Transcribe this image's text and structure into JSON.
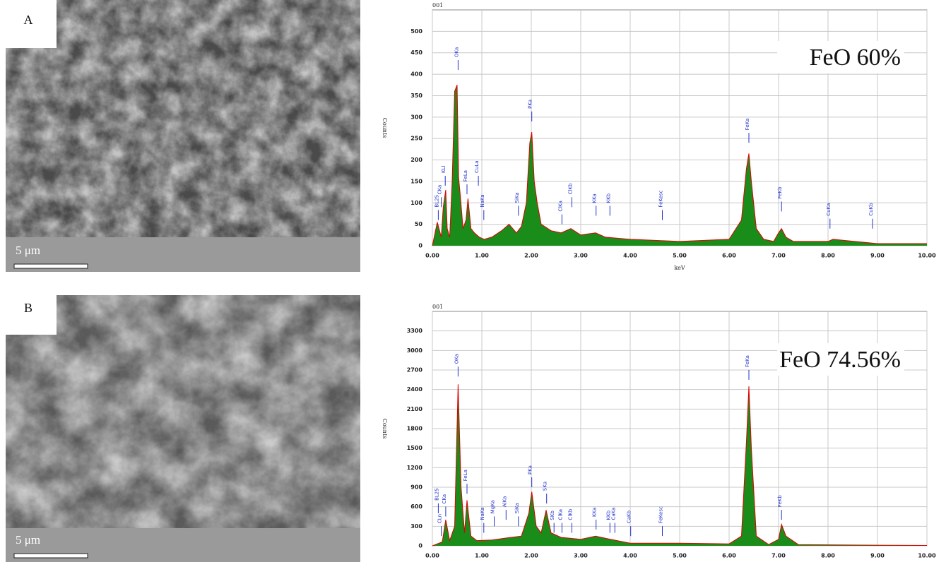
{
  "panels": [
    {
      "label": "A",
      "scale_bar": "5 μm"
    },
    {
      "label": "B",
      "scale_bar": "5 μm"
    }
  ],
  "chart_data": [
    {
      "type": "line",
      "title": "001",
      "y_label": "Counts",
      "x_label": "keV",
      "annotation": "FeO 60%",
      "xlim": [
        0,
        10
      ],
      "ylim": [
        0,
        550
      ],
      "grid": true,
      "xticks": [
        {
          "value": 0,
          "label": "0.00"
        },
        {
          "value": 1,
          "label": "1.00"
        },
        {
          "value": 2,
          "label": "2.00"
        },
        {
          "value": 3,
          "label": "3.00"
        },
        {
          "value": 4,
          "label": "4.00"
        },
        {
          "value": 5,
          "label": "5.00"
        },
        {
          "value": 6,
          "label": "6.00"
        },
        {
          "value": 7,
          "label": "7.00"
        },
        {
          "value": 8,
          "label": "8.00"
        },
        {
          "value": 9,
          "label": "9.00"
        },
        {
          "value": 10,
          "label": "10.00"
        }
      ],
      "yticks": [
        0,
        50,
        100,
        150,
        200,
        250,
        300,
        350,
        400,
        450,
        500
      ],
      "x": [
        0.0,
        0.1,
        0.18,
        0.22,
        0.27,
        0.3,
        0.35,
        0.4,
        0.45,
        0.5,
        0.53,
        0.57,
        0.62,
        0.68,
        0.72,
        0.78,
        0.85,
        0.95,
        1.05,
        1.2,
        1.4,
        1.55,
        1.7,
        1.8,
        1.9,
        1.97,
        2.01,
        2.06,
        2.12,
        2.2,
        2.4,
        2.6,
        2.8,
        3.0,
        3.3,
        3.5,
        4.0,
        5.0,
        6.0,
        6.25,
        6.35,
        6.4,
        6.45,
        6.55,
        6.7,
        6.9,
        7.0,
        7.06,
        7.15,
        7.3,
        8.0,
        8.1,
        9.0,
        10.0
      ],
      "series": [
        {
          "color": "#e00000",
          "fill": "#1a8c1a",
          "values": [
            0,
            55,
            20,
            90,
            130,
            40,
            20,
            150,
            360,
            375,
            160,
            110,
            40,
            60,
            110,
            40,
            30,
            20,
            15,
            20,
            35,
            50,
            30,
            45,
            100,
            240,
            265,
            150,
            100,
            50,
            35,
            30,
            40,
            25,
            30,
            20,
            15,
            10,
            15,
            60,
            180,
            215,
            150,
            40,
            15,
            10,
            30,
            40,
            20,
            10,
            10,
            15,
            5,
            5
          ]
        }
      ],
      "peak_labels": [
        {
          "x": 0.12,
          "y": 60,
          "text": "BL25"
        },
        {
          "x": 0.18,
          "y": 90,
          "text": "CKa"
        },
        {
          "x": 0.26,
          "y": 140,
          "text": "KLl"
        },
        {
          "x": 0.52,
          "y": 410,
          "text": "OKa"
        },
        {
          "x": 0.7,
          "y": 120,
          "text": "FeLa"
        },
        {
          "x": 0.93,
          "y": 140,
          "text": "CuLa"
        },
        {
          "x": 1.04,
          "y": 60,
          "text": "NaKa"
        },
        {
          "x": 1.74,
          "y": 70,
          "text": "SiKa"
        },
        {
          "x": 2.01,
          "y": 290,
          "text": "PKa"
        },
        {
          "x": 2.62,
          "y": 50,
          "text": "ClKa"
        },
        {
          "x": 2.82,
          "y": 90,
          "text": "ClKb"
        },
        {
          "x": 3.31,
          "y": 70,
          "text": "KKa"
        },
        {
          "x": 3.59,
          "y": 70,
          "text": "KKb"
        },
        {
          "x": 4.65,
          "y": 60,
          "text": "FeKesc"
        },
        {
          "x": 6.4,
          "y": 240,
          "text": "FeKa"
        },
        {
          "x": 7.06,
          "y": 80,
          "text": "FeKb"
        },
        {
          "x": 8.04,
          "y": 40,
          "text": "CuKa"
        },
        {
          "x": 8.9,
          "y": 40,
          "text": "CuKb"
        }
      ]
    },
    {
      "type": "line",
      "title": "001",
      "y_label": "Counts",
      "annotation": "FeO 74.56%",
      "xlim": [
        0,
        10
      ],
      "ylim": [
        0,
        3600
      ],
      "grid": true,
      "xticks": [
        {
          "value": 0,
          "label": "0.00"
        },
        {
          "value": 1,
          "label": "1.00"
        },
        {
          "value": 2,
          "label": "2.00"
        },
        {
          "value": 3,
          "label": "3.00"
        },
        {
          "value": 4,
          "label": "4.00"
        },
        {
          "value": 5,
          "label": "5.00"
        },
        {
          "value": 6,
          "label": "6.00"
        },
        {
          "value": 7,
          "label": "7.00"
        },
        {
          "value": 8,
          "label": "8.00"
        },
        {
          "value": 9,
          "label": "9.00"
        },
        {
          "value": 10,
          "label": "10.00"
        }
      ],
      "yticks": [
        0,
        300,
        600,
        900,
        1200,
        1500,
        1800,
        2100,
        2400,
        2700,
        3000,
        3300
      ],
      "x": [
        0.0,
        0.1,
        0.2,
        0.27,
        0.35,
        0.45,
        0.52,
        0.58,
        0.65,
        0.7,
        0.78,
        0.9,
        1.2,
        1.5,
        1.8,
        1.95,
        2.01,
        2.1,
        2.2,
        2.3,
        2.4,
        2.6,
        3.0,
        3.3,
        3.6,
        4.0,
        5.0,
        6.0,
        6.25,
        6.35,
        6.4,
        6.45,
        6.55,
        6.8,
        7.0,
        7.06,
        7.15,
        7.4,
        8.0,
        9.0,
        10.0
      ],
      "series": [
        {
          "color": "#e00000",
          "fill": "#1a8c1a",
          "values": [
            0,
            30,
            60,
            400,
            80,
            300,
            2480,
            900,
            200,
            700,
            150,
            80,
            90,
            120,
            150,
            500,
            830,
            300,
            200,
            550,
            200,
            130,
            100,
            150,
            100,
            40,
            40,
            30,
            150,
            1600,
            2450,
            1500,
            150,
            20,
            100,
            330,
            150,
            20,
            15,
            10,
            5
          ]
        }
      ],
      "peak_labels": [
        {
          "x": 0.12,
          "y": 500,
          "text": "BL25"
        },
        {
          "x": 0.18,
          "y": 150,
          "text": "CLn"
        },
        {
          "x": 0.27,
          "y": 450,
          "text": "CKa"
        },
        {
          "x": 0.52,
          "y": 2600,
          "text": "OKa"
        },
        {
          "x": 0.7,
          "y": 800,
          "text": "FeLa"
        },
        {
          "x": 1.04,
          "y": 200,
          "text": "NaKa"
        },
        {
          "x": 1.25,
          "y": 300,
          "text": "MgKa"
        },
        {
          "x": 1.49,
          "y": 400,
          "text": "AlKa"
        },
        {
          "x": 1.74,
          "y": 300,
          "text": "SiKa"
        },
        {
          "x": 2.01,
          "y": 900,
          "text": "PKa"
        },
        {
          "x": 2.31,
          "y": 650,
          "text": "SKa"
        },
        {
          "x": 2.46,
          "y": 200,
          "text": "SKb"
        },
        {
          "x": 2.62,
          "y": 200,
          "text": "ClKa"
        },
        {
          "x": 2.82,
          "y": 200,
          "text": "ClKb"
        },
        {
          "x": 3.31,
          "y": 250,
          "text": "KKa"
        },
        {
          "x": 3.59,
          "y": 200,
          "text": "KKb"
        },
        {
          "x": 3.69,
          "y": 200,
          "text": "CaKa"
        },
        {
          "x": 4.01,
          "y": 150,
          "text": "CaKb"
        },
        {
          "x": 4.65,
          "y": 150,
          "text": "FeKesc"
        },
        {
          "x": 6.4,
          "y": 2550,
          "text": "FeKa"
        },
        {
          "x": 7.06,
          "y": 400,
          "text": "FeKb"
        }
      ]
    }
  ]
}
